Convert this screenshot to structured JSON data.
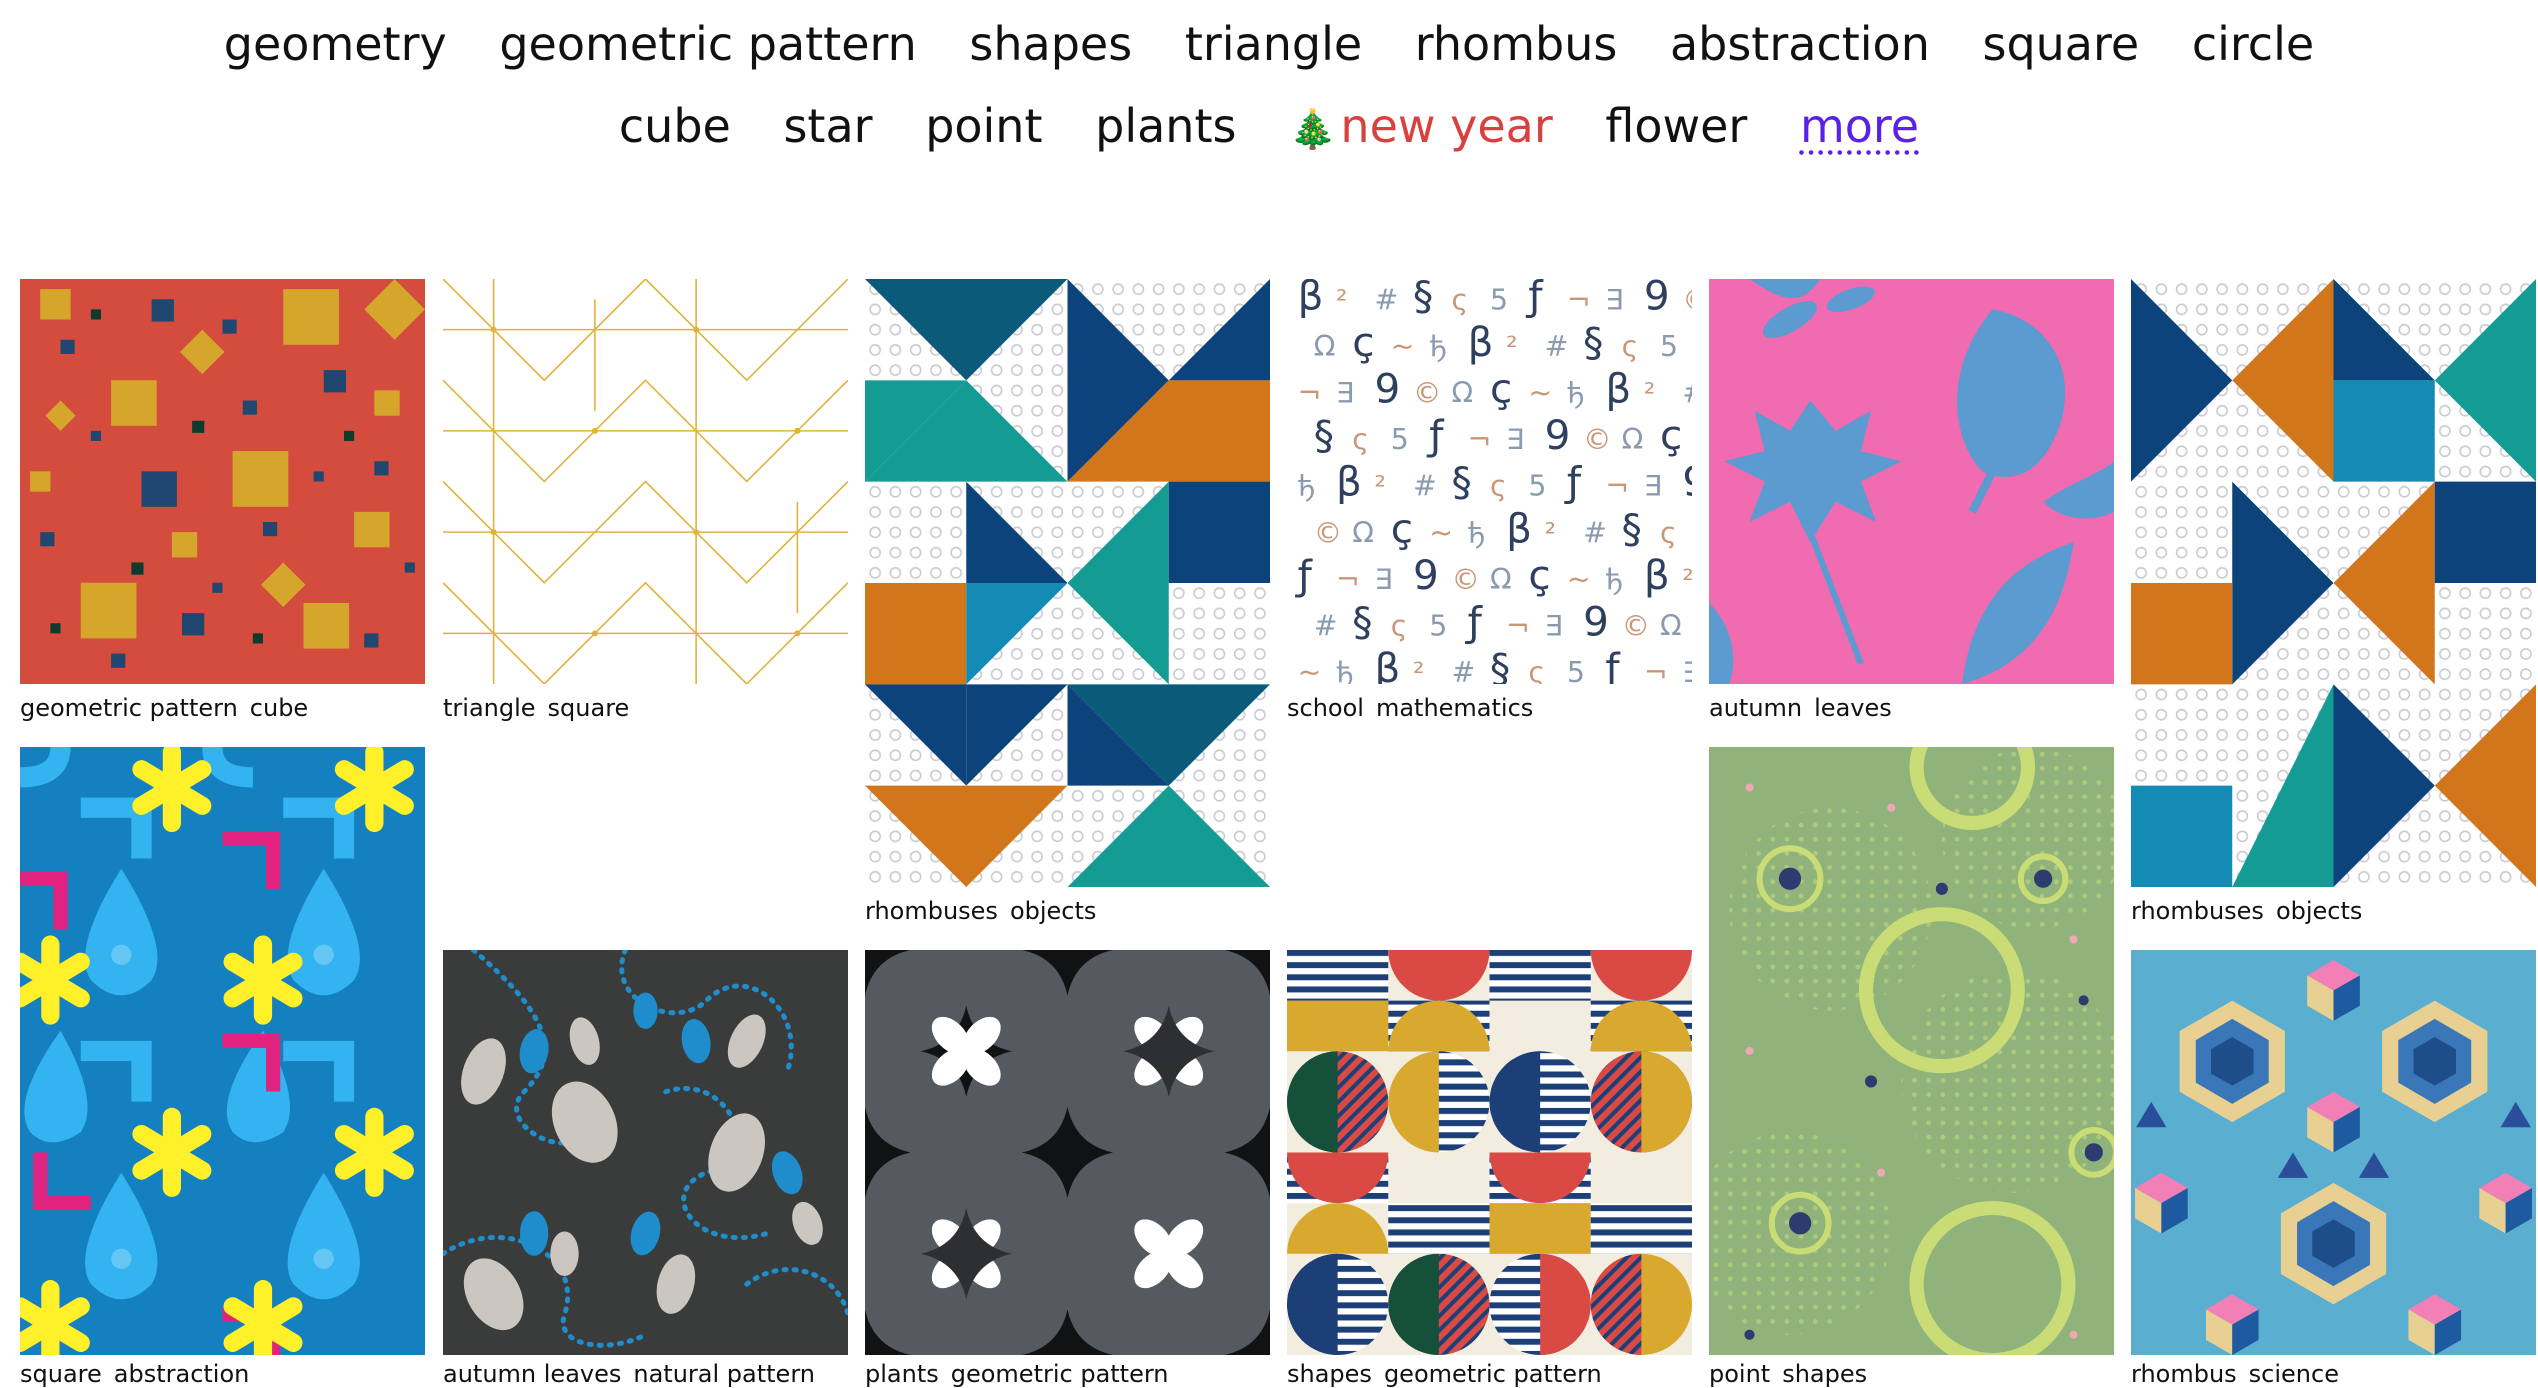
{
  "tags_row1": [
    "geometry",
    "geometric pattern",
    "shapes",
    "triangle",
    "rhombus",
    "abstraction",
    "square",
    "circle"
  ],
  "tags_row2": [
    "cube",
    "star",
    "point",
    "plants"
  ],
  "tags_row2_special": "new year",
  "tags_row2_after": [
    "flower"
  ],
  "more_label": "more",
  "cards": [
    {
      "tags": [
        "geometric pattern",
        "cube"
      ]
    },
    {
      "tags": [
        "triangle",
        "square"
      ]
    },
    {
      "tags": [
        "rhombuses",
        "objects"
      ]
    },
    {
      "tags": [
        "school",
        "mathematics"
      ]
    },
    {
      "tags": [
        "autumn",
        "leaves"
      ]
    },
    {
      "tags": [
        "rhombuses",
        "objects"
      ]
    },
    {
      "tags": [
        "square",
        "abstraction"
      ]
    },
    {
      "tags": [
        "autumn leaves",
        "natural pattern"
      ]
    },
    {
      "tags": [
        "plants",
        "geometric pattern"
      ]
    },
    {
      "tags": [
        "shapes",
        "geometric pattern"
      ]
    },
    {
      "tags": [
        "point",
        "shapes"
      ]
    },
    {
      "tags": [
        "rhombus",
        "science"
      ]
    }
  ],
  "math_glyphs": [
    "β",
    "²",
    "#",
    "§",
    "ς",
    "5",
    "ƒ",
    "¬",
    "∃",
    "9",
    "©",
    "Ω",
    "ç",
    "~",
    "ђ"
  ],
  "colors": {
    "text": "#111111",
    "special_tag": "#d8413e",
    "more_link": "#5b22e6",
    "navy": "#0b437a",
    "teal": "#149b94",
    "orange": "#d2761b",
    "pink": "#f06bb0",
    "leaf_blue": "#5b9bd0",
    "dark_gray": "#3a3c3b",
    "gray": "#555960",
    "sage": "#8fb37a",
    "sky": "#5aaed0"
  }
}
